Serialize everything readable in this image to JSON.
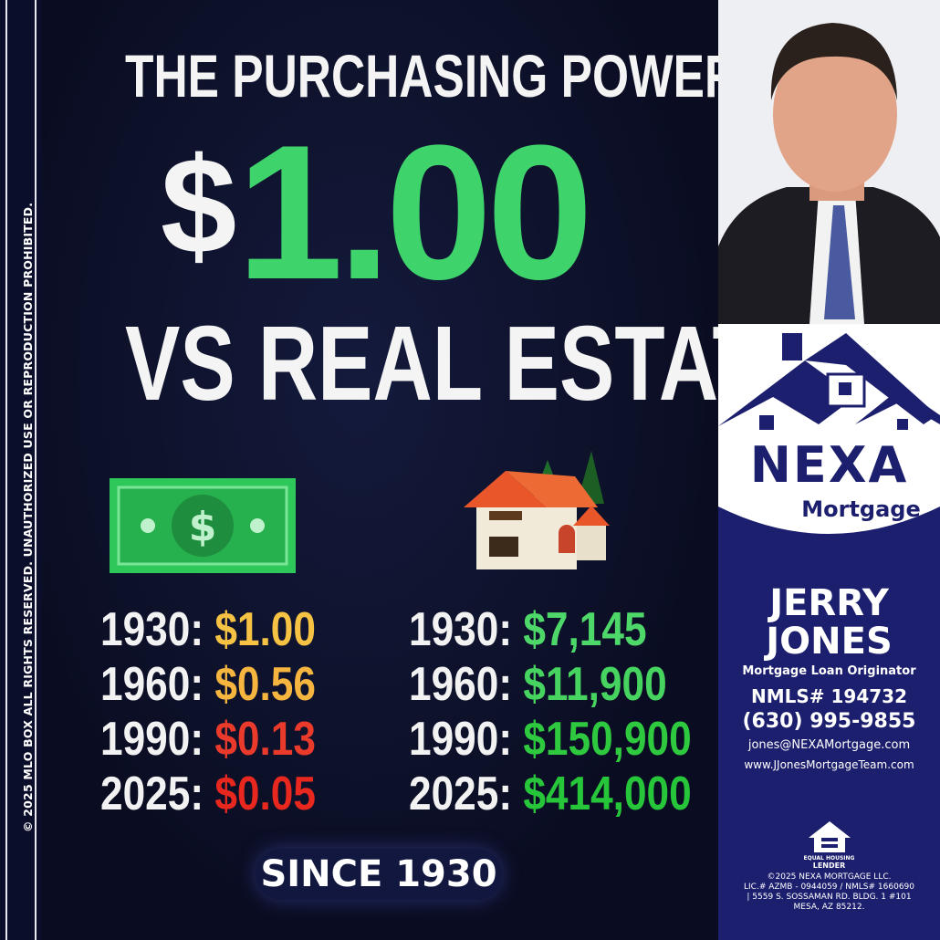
{
  "side_notice": "© 2025 MLO BOX  ALL RIGHTS RESERVED. UNAUTHORIZED USE OR REPRODUCTION PROHIBITED.",
  "headline": {
    "line1": "THE PURCHASING POWER OF",
    "dollar_sign": "$",
    "amount": "1.00",
    "line3": "VS REAL ESTATE"
  },
  "dollar_column": {
    "icon": "dollar-bill-icon",
    "rows": [
      {
        "year": "1930:",
        "value": "$1.00",
        "color": "#f6c244"
      },
      {
        "year": "1960:",
        "value": "$0.56",
        "color": "#f5b53f"
      },
      {
        "year": "1990:",
        "value": "$0.13",
        "color": "#ea3a2c"
      },
      {
        "year": "2025:",
        "value": "$0.05",
        "color": "#e8281f"
      }
    ]
  },
  "house_column": {
    "icon": "house-icon",
    "rows": [
      {
        "year": "1930:",
        "value": "$7,145",
        "color": "#4fd86a"
      },
      {
        "year": "1960:",
        "value": "$11,900",
        "color": "#46d35f"
      },
      {
        "year": "1990:",
        "value": "$150,900",
        "color": "#2fc940"
      },
      {
        "year": "2025:",
        "value": "$414,000",
        "color": "#27c53a"
      }
    ]
  },
  "badge": "SINCE 1930",
  "brand": {
    "name": "NEXA",
    "sub": "Mortgage",
    "navy": "#1c1f6e"
  },
  "agent": {
    "first": "JERRY",
    "last": "JONES",
    "title": "Mortgage Loan Originator",
    "nmls": "NMLS# 194732",
    "phone": "(630) 995-9855",
    "email": "jones@NEXAMortgage.com",
    "website": "www.JJonesMortgageTeam.com"
  },
  "ehl": {
    "line1": "EQUAL HOUSING",
    "line2": "LENDER"
  },
  "legal": [
    "©2025 NEXA MORTGAGE LLC.",
    "LIC.# AZMB - 0944059 / NMLS# 1660690",
    "| 5559 S. SOSSAMAN RD. BLDG. 1 #101",
    "MESA, AZ 85212."
  ]
}
